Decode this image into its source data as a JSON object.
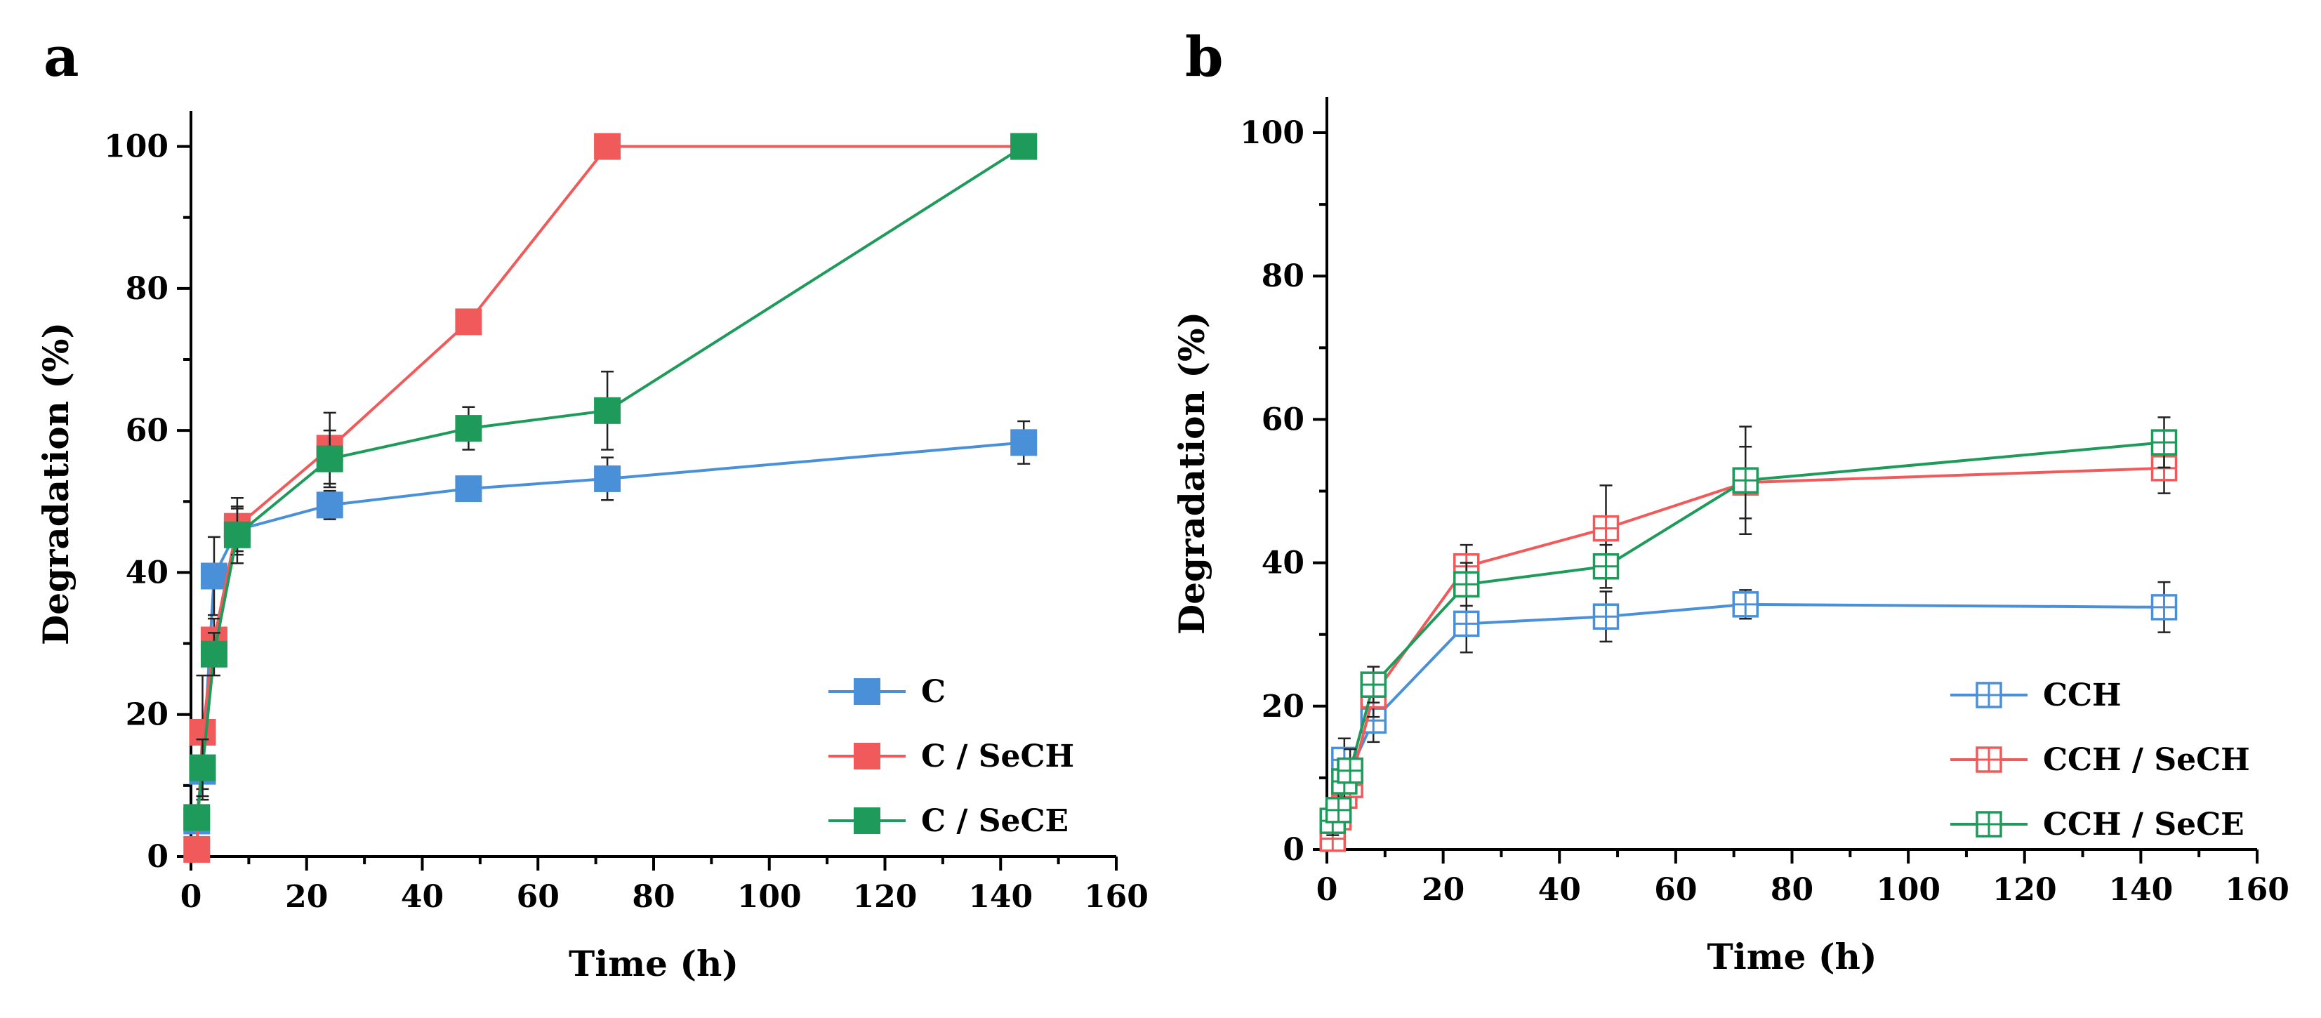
{
  "chart_data": [
    {
      "panel": "a",
      "type": "line",
      "xlabel": "Time (h)",
      "ylabel": "Degradation (%)",
      "xlim": [
        0,
        160
      ],
      "ylim": [
        0,
        105
      ],
      "xticks": [
        0,
        20,
        40,
        60,
        80,
        100,
        120,
        140,
        160
      ],
      "yticks": [
        0,
        20,
        40,
        60,
        80,
        100
      ],
      "marker": "filled-square",
      "legend_position": "bottom-right",
      "series": [
        {
          "name": "C",
          "color": "#4A90D9",
          "x": [
            1,
            2,
            4,
            8,
            24,
            48,
            72,
            144
          ],
          "y": [
            5,
            12,
            39.5,
            46,
            49.5,
            51.8,
            53.2,
            58.3
          ],
          "err": [
            1.5,
            4,
            5.5,
            3,
            2,
            1.5,
            3,
            3
          ]
        },
        {
          "name": "C / SeCH",
          "color": "#F15A5A",
          "x": [
            1,
            2,
            4,
            8,
            24,
            48,
            72,
            144
          ],
          "y": [
            1,
            17.5,
            30.5,
            46.5,
            57.5,
            75.3,
            100,
            100
          ],
          "err": [
            0.8,
            8,
            3,
            4,
            5,
            0,
            0,
            0
          ]
        },
        {
          "name": "C / SeCE",
          "color": "#1E9A5A",
          "x": [
            1,
            2,
            4,
            8,
            24,
            48,
            72,
            144
          ],
          "y": [
            5.5,
            12.5,
            28.5,
            45.3,
            56,
            60.3,
            62.8,
            100
          ],
          "err": [
            1.5,
            4,
            3,
            4,
            4,
            3,
            5.5,
            0
          ]
        }
      ]
    },
    {
      "panel": "b",
      "type": "line",
      "xlabel": "Time (h)",
      "ylabel": "Degradation (%)",
      "xlim": [
        0,
        160
      ],
      "ylim": [
        0,
        105
      ],
      "xticks": [
        0,
        20,
        40,
        60,
        80,
        100,
        120,
        140,
        160
      ],
      "yticks": [
        0,
        20,
        40,
        60,
        80,
        100
      ],
      "marker": "open-square-cross",
      "legend_position": "bottom-right",
      "series": [
        {
          "name": "CCH",
          "color": "#4A90D9",
          "x": [
            1,
            2,
            3,
            4,
            8,
            24,
            48,
            72,
            144
          ],
          "y": [
            3.5,
            5,
            12.5,
            11,
            18,
            31.5,
            32.5,
            34.2,
            33.8
          ],
          "err": [
            2,
            3,
            3,
            3,
            3,
            4,
            3.5,
            2,
            3.5
          ]
        },
        {
          "name": "CCH / SeCH",
          "color": "#F15A5A",
          "x": [
            1,
            2,
            3,
            4,
            8,
            24,
            48,
            72,
            144
          ],
          "y": [
            1.5,
            4.5,
            7.5,
            9,
            21.5,
            39.5,
            44.8,
            51.2,
            53.2
          ],
          "err": [
            1.5,
            2.5,
            3,
            3,
            3,
            3,
            6,
            5,
            3.5
          ]
        },
        {
          "name": "CCH / SeCE",
          "color": "#1E9A5A",
          "x": [
            1,
            2,
            3,
            4,
            8,
            24,
            48,
            72,
            144
          ],
          "y": [
            4,
            5.5,
            9.5,
            11,
            23,
            37,
            39.5,
            51.5,
            56.8
          ],
          "err": [
            2,
            2.5,
            3,
            3,
            2.5,
            3,
            3,
            7.5,
            3.5
          ]
        }
      ]
    }
  ]
}
